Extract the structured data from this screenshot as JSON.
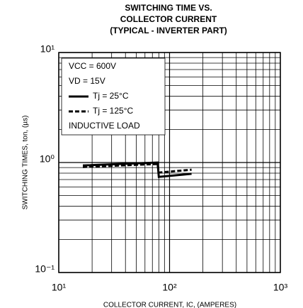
{
  "chart_data": {
    "type": "line",
    "title": [
      "SWITCHING TIME VS.",
      "COLLECTOR CURRENT",
      "(TYPICAL - INVERTER PART)"
    ],
    "x_label": "COLLECTOR CURRENT, IC, (AMPERES)",
    "y_label": "SWITCHING TIMES, ton, (µs)",
    "annotations": [
      "VCC = 600V",
      "VD = 15V",
      "INDUCTIVE LOAD"
    ],
    "x": [
      16.5,
      78,
      80,
      158
    ],
    "series": [
      {
        "name": "Tj = 25°C",
        "color": "#000000",
        "dash": false,
        "values": [
          0.94,
          1.0,
          0.74,
          0.79
        ]
      },
      {
        "name": "Tj = 125°C",
        "color": "#000000",
        "dash": true,
        "values": [
          0.91,
          0.97,
          0.81,
          0.86
        ]
      }
    ],
    "log_x": true,
    "log_y": true,
    "grid": true,
    "xlim": [
      10,
      1000
    ],
    "xticks": [
      {
        "value": 10,
        "label": "10¹"
      },
      {
        "value": 100,
        "label": "10²"
      },
      {
        "value": 1000,
        "label": "10³"
      }
    ],
    "xminor": [
      20,
      30,
      40,
      50,
      60,
      70,
      80,
      90,
      200,
      300,
      400,
      500,
      600,
      700,
      800,
      900
    ],
    "ylim": [
      0.1,
      10
    ],
    "yticks": [
      {
        "value": 0.1,
        "label": "10⁻¹"
      },
      {
        "value": 1,
        "label": "10⁰"
      },
      {
        "value": 10,
        "label": "10¹"
      }
    ],
    "yminor": [
      0.2,
      0.3,
      0.4,
      0.5,
      0.6,
      0.7,
      0.8,
      0.9,
      2,
      3,
      4,
      5,
      6,
      7,
      8,
      9
    ]
  }
}
